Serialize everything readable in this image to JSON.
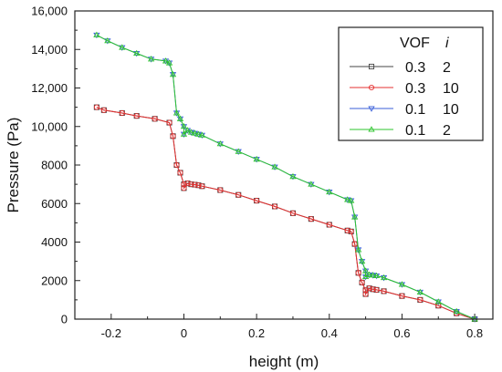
{
  "chart_data": {
    "type": "line",
    "xlabel": "height (m)",
    "ylabel": "Pressure (Pa)",
    "xlim": [
      -0.3,
      0.85
    ],
    "ylim": [
      0,
      16000
    ],
    "x_ticks": [
      -0.2,
      0,
      0.2,
      0.4,
      0.6,
      0.8
    ],
    "x_tick_labels": [
      "-0.2",
      "0",
      "0.2",
      "0.4",
      "0.6",
      "0.8"
    ],
    "y_ticks": [
      0,
      2000,
      4000,
      6000,
      8000,
      10000,
      12000,
      14000,
      16000
    ],
    "y_tick_labels": [
      "0",
      "2000",
      "4000",
      "6000",
      "8000",
      "10,000",
      "12,000",
      "14,000",
      "16,000"
    ],
    "legend": {
      "position": "top-right",
      "header": [
        "VOF",
        "i"
      ],
      "entries": [
        {
          "vof": "0.3",
          "i": "2"
        },
        {
          "vof": "0.3",
          "i": "10"
        },
        {
          "vof": "0.1",
          "i": "10"
        },
        {
          "vof": "0.1",
          "i": "2"
        }
      ]
    },
    "series": [
      {
        "marker": "square",
        "color": "#444444",
        "x": [
          -0.24,
          -0.22,
          -0.17,
          -0.13,
          -0.08,
          -0.04,
          -0.03,
          -0.02,
          -0.01,
          0.0,
          0.0,
          0.01,
          0.02,
          0.03,
          0.04,
          0.05,
          0.1,
          0.15,
          0.2,
          0.25,
          0.3,
          0.35,
          0.4,
          0.45,
          0.46,
          0.47,
          0.48,
          0.49,
          0.5,
          0.5,
          0.51,
          0.52,
          0.53,
          0.55,
          0.6,
          0.65,
          0.7,
          0.75,
          0.8
        ],
        "y": [
          11000,
          10850,
          10700,
          10550,
          10400,
          10200,
          9500,
          8000,
          7600,
          7000,
          6800,
          7050,
          7000,
          6980,
          6950,
          6900,
          6700,
          6450,
          6150,
          5850,
          5500,
          5200,
          4900,
          4600,
          4550,
          3900,
          2400,
          1900,
          1500,
          1300,
          1600,
          1550,
          1520,
          1450,
          1200,
          1000,
          700,
          300,
          0
        ]
      },
      {
        "marker": "circle",
        "color": "#e53030",
        "x": [
          -0.24,
          -0.22,
          -0.17,
          -0.13,
          -0.08,
          -0.04,
          -0.03,
          -0.02,
          -0.01,
          0.0,
          0.0,
          0.01,
          0.02,
          0.03,
          0.04,
          0.05,
          0.1,
          0.15,
          0.2,
          0.25,
          0.3,
          0.35,
          0.4,
          0.45,
          0.46,
          0.47,
          0.48,
          0.49,
          0.5,
          0.5,
          0.51,
          0.52,
          0.53,
          0.55,
          0.6,
          0.65,
          0.7,
          0.75,
          0.8
        ],
        "y": [
          11000,
          10850,
          10700,
          10550,
          10400,
          10200,
          9500,
          8000,
          7600,
          7000,
          6800,
          7050,
          7000,
          6980,
          6950,
          6900,
          6700,
          6450,
          6150,
          5850,
          5500,
          5200,
          4900,
          4600,
          4550,
          3900,
          2400,
          1900,
          1500,
          1300,
          1600,
          1550,
          1520,
          1450,
          1200,
          1000,
          700,
          300,
          0
        ]
      },
      {
        "marker": "triangle-down",
        "color": "#3a5fd9",
        "x": [
          -0.24,
          -0.21,
          -0.17,
          -0.13,
          -0.09,
          -0.05,
          -0.04,
          -0.03,
          -0.02,
          -0.01,
          0.0,
          0.0,
          0.01,
          0.02,
          0.03,
          0.04,
          0.05,
          0.1,
          0.15,
          0.2,
          0.25,
          0.3,
          0.35,
          0.4,
          0.45,
          0.46,
          0.47,
          0.48,
          0.49,
          0.5,
          0.5,
          0.51,
          0.52,
          0.53,
          0.55,
          0.6,
          0.65,
          0.7,
          0.75,
          0.8
        ],
        "y": [
          14750,
          14450,
          14100,
          13800,
          13500,
          13400,
          13300,
          12700,
          10700,
          10400,
          10000,
          9600,
          9800,
          9700,
          9650,
          9600,
          9550,
          9100,
          8700,
          8300,
          7900,
          7400,
          7000,
          6600,
          6200,
          6150,
          5300,
          3600,
          3000,
          2500,
          2200,
          2300,
          2280,
          2250,
          2150,
          1800,
          1400,
          900,
          400,
          0
        ]
      },
      {
        "marker": "triangle-up",
        "color": "#2ec42e",
        "x": [
          -0.24,
          -0.21,
          -0.17,
          -0.13,
          -0.09,
          -0.05,
          -0.04,
          -0.03,
          -0.02,
          -0.01,
          0.0,
          0.0,
          0.01,
          0.02,
          0.03,
          0.04,
          0.05,
          0.1,
          0.15,
          0.2,
          0.25,
          0.3,
          0.35,
          0.4,
          0.45,
          0.46,
          0.47,
          0.48,
          0.49,
          0.5,
          0.5,
          0.51,
          0.52,
          0.53,
          0.55,
          0.6,
          0.65,
          0.7,
          0.75,
          0.8
        ],
        "y": [
          14750,
          14450,
          14100,
          13800,
          13500,
          13400,
          13300,
          12700,
          10700,
          10400,
          10000,
          9600,
          9800,
          9700,
          9650,
          9600,
          9550,
          9100,
          8700,
          8300,
          7900,
          7400,
          7000,
          6600,
          6200,
          6150,
          5300,
          3600,
          3000,
          2500,
          2200,
          2300,
          2280,
          2250,
          2150,
          1800,
          1400,
          900,
          400,
          0
        ]
      }
    ]
  }
}
